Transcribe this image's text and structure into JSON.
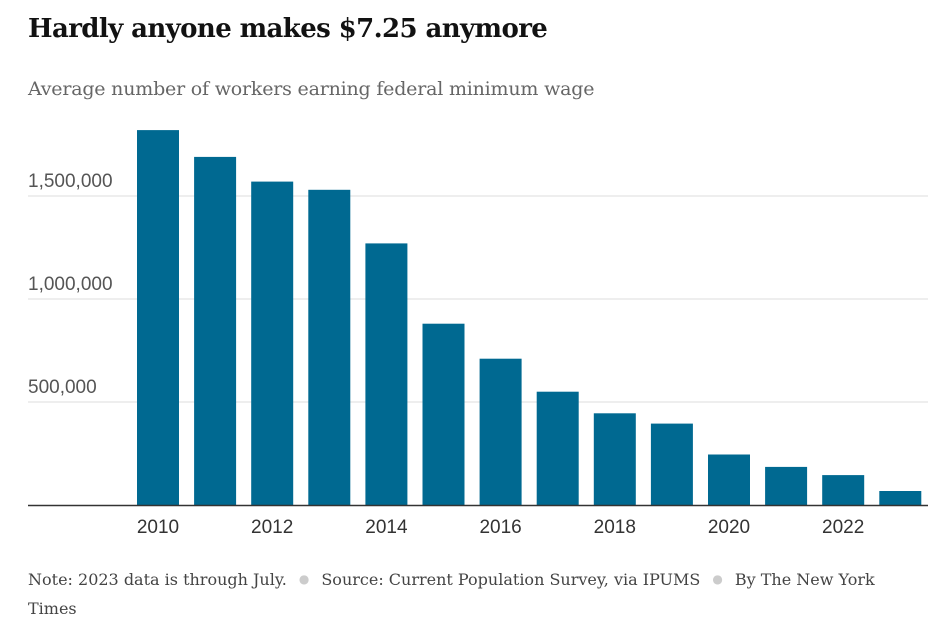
{
  "header": {
    "title": "Hardly anyone makes $7.25 anymore",
    "subtitle": "Average number of workers earning federal minimum wage"
  },
  "footer": {
    "note": "Note: 2023 data is through July.",
    "source": "Source: Current Population Survey, via IPUMS",
    "credit": "By The New York Times"
  },
  "colors": {
    "bar": "#006991",
    "grid": "#dddddd",
    "axis": "#333333"
  },
  "chart_data": {
    "type": "bar",
    "title": "Hardly anyone makes $7.25 anymore",
    "subtitle": "Average number of workers earning federal minimum wage",
    "xlabel": "",
    "ylabel": "",
    "categories": [
      "2010",
      "2011",
      "2012",
      "2013",
      "2014",
      "2015",
      "2016",
      "2017",
      "2018",
      "2019",
      "2020",
      "2021",
      "2022",
      "2023"
    ],
    "values": [
      1820000,
      1690000,
      1570000,
      1530000,
      1270000,
      880000,
      710000,
      550000,
      445000,
      395000,
      245000,
      185000,
      145000,
      68000
    ],
    "ylim": [
      0,
      1850000
    ],
    "y_ticks": [
      500000,
      1000000,
      1500000
    ],
    "y_tick_labels": [
      "500,000",
      "1,000,000",
      "1,500,000"
    ],
    "x_tick_labels": [
      "2010",
      "2012",
      "2014",
      "2016",
      "2018",
      "2020",
      "2022"
    ],
    "grid": true,
    "legend": "none"
  }
}
